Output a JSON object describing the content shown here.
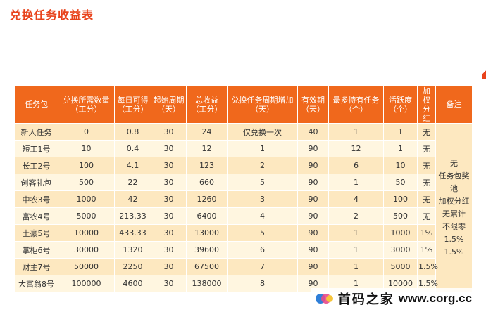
{
  "page": {
    "title": "兑换任务收益表"
  },
  "table": {
    "headers": [
      "任务包",
      "兑换所需数量（工分）",
      "每日可得（工分）",
      "起始周期（天）",
      "总收益（工分）",
      "兑换任务周期增加（天）",
      "有效期（天）",
      "最多持有任务（个）",
      "活跃度（个）",
      "加权分红",
      "备注"
    ],
    "rows": [
      [
        "新人任务",
        "0",
        "0.8",
        "30",
        "24",
        "仅兑换一次",
        "40",
        "1",
        "1",
        "无"
      ],
      [
        "短工1号",
        "10",
        "0.4",
        "30",
        "12",
        "1",
        "90",
        "12",
        "1",
        "无"
      ],
      [
        "长工2号",
        "100",
        "4.1",
        "30",
        "123",
        "2",
        "90",
        "6",
        "10",
        "无"
      ],
      [
        "创客礼包",
        "500",
        "22",
        "30",
        "660",
        "5",
        "90",
        "1",
        "50",
        "无"
      ],
      [
        "中农3号",
        "1000",
        "42",
        "30",
        "1260",
        "3",
        "90",
        "4",
        "100",
        "无"
      ],
      [
        "富农4号",
        "5000",
        "213.33",
        "30",
        "6400",
        "4",
        "90",
        "2",
        "500",
        "无"
      ],
      [
        "土豪5号",
        "10000",
        "433.33",
        "30",
        "13000",
        "5",
        "90",
        "1",
        "1000",
        "1%"
      ],
      [
        "掌柜6号",
        "30000",
        "1320",
        "30",
        "39600",
        "6",
        "90",
        "1",
        "3000",
        "1%"
      ],
      [
        "财主7号",
        "50000",
        "2250",
        "30",
        "67500",
        "7",
        "90",
        "1",
        "5000",
        "1.5%"
      ],
      [
        "大富翁8号",
        "100000",
        "4600",
        "30",
        "138000",
        "8",
        "90",
        "1",
        "10000",
        "1.5%"
      ]
    ],
    "notes": [
      "无",
      "任务包奖池",
      "加权分红",
      "无累计",
      "不限零",
      "1.5%",
      "1.5%"
    ]
  },
  "watermark": {
    "cn": "首码之家",
    "url": "www.corg.cc"
  },
  "colors": {
    "title": "#e8431c",
    "header_bg": "#f0681c",
    "row_odd": "#fde8c0",
    "row_even": "#fff6e0"
  }
}
